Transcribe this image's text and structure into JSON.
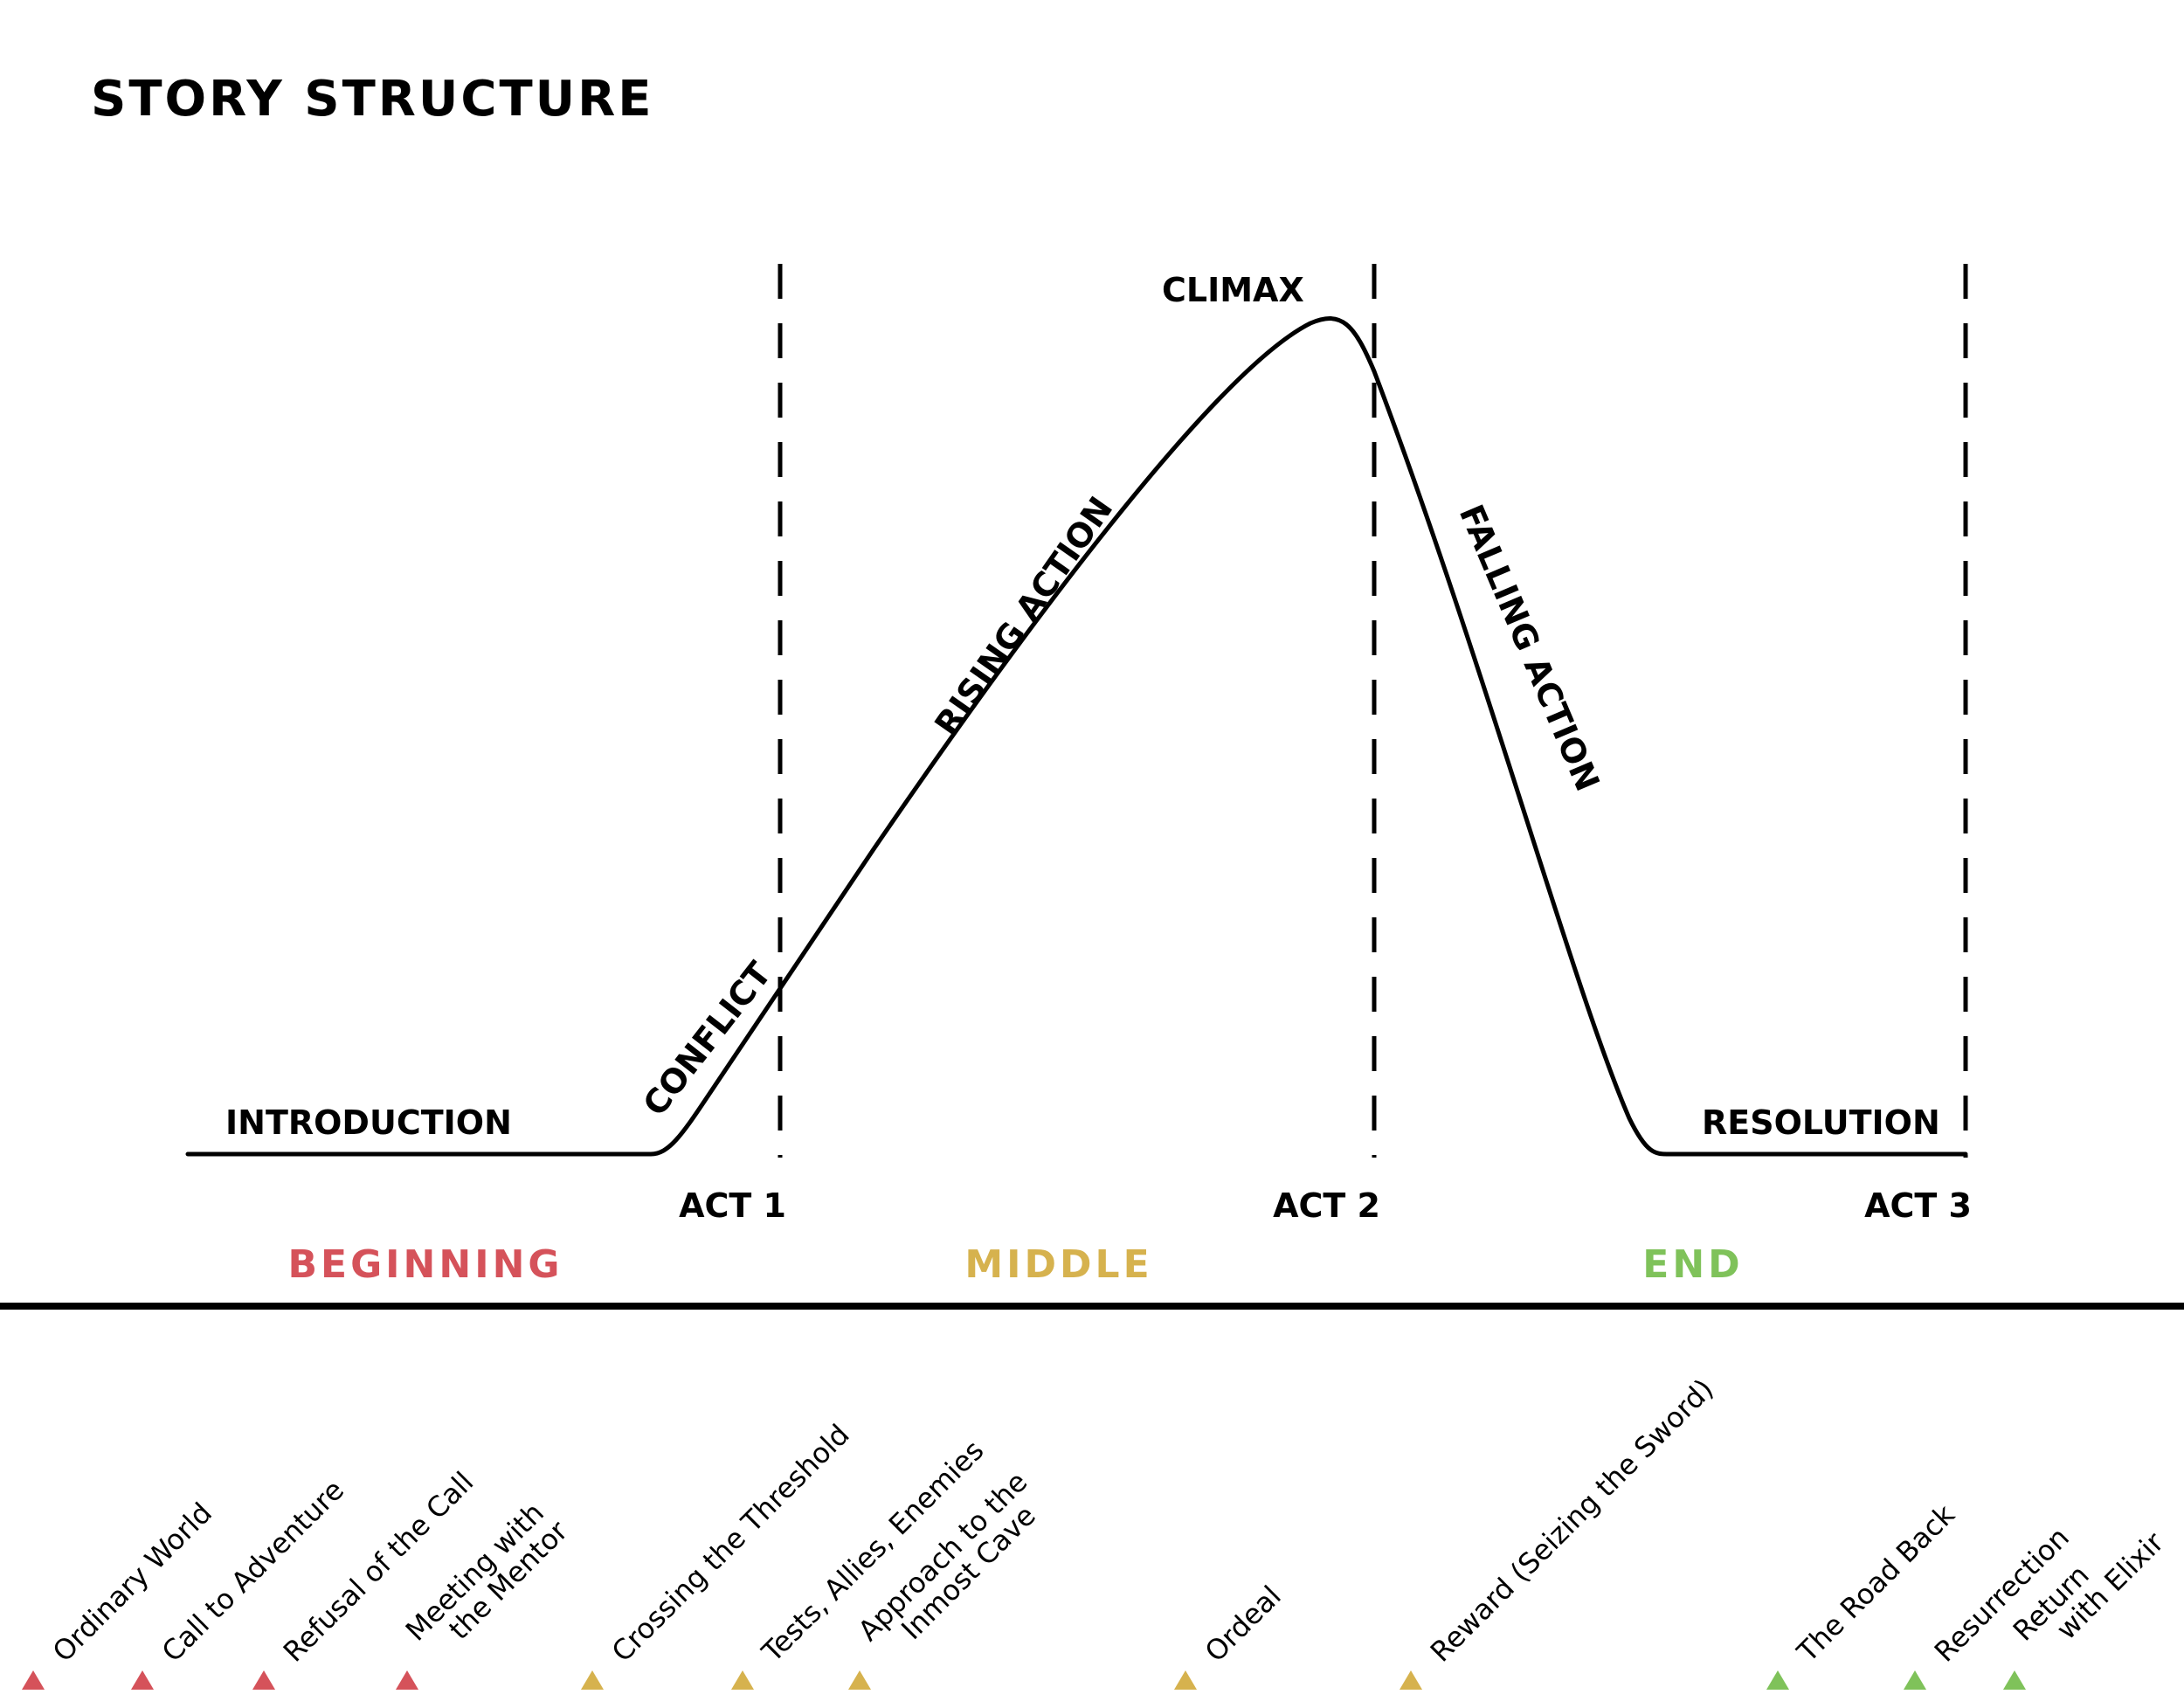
{
  "title": "STORY STRUCTURE",
  "plot_labels": {
    "introduction": "INTRODUCTION",
    "conflict": "CONFLICT",
    "rising_action": "RISING ACTION",
    "climax": "CLIMAX",
    "falling_action": "FALLING ACTION",
    "resolution": "RESOLUTION"
  },
  "acts": [
    "ACT 1",
    "ACT 2",
    "ACT 3"
  ],
  "sections": {
    "beginning": {
      "label": "BEGINNING",
      "color": "#d5525a"
    },
    "middle": {
      "label": "MIDDLE",
      "color": "#d6b24e"
    },
    "end": {
      "label": "END",
      "color": "#7fc25a"
    }
  },
  "stages": [
    {
      "lines": [
        "Ordinary World"
      ],
      "group": "beginning"
    },
    {
      "lines": [
        "Call to Adventure"
      ],
      "group": "beginning"
    },
    {
      "lines": [
        "Refusal of the Call"
      ],
      "group": "beginning"
    },
    {
      "lines": [
        "Meeting with",
        "the Mentor"
      ],
      "group": "beginning"
    },
    {
      "lines": [
        "Crossing the Threshold"
      ],
      "group": "middle"
    },
    {
      "lines": [
        "Tests, Allies, Enemies"
      ],
      "group": "middle"
    },
    {
      "lines": [
        "Approach to the",
        "Inmost Cave"
      ],
      "group": "middle"
    },
    {
      "lines": [
        "Ordeal"
      ],
      "group": "middle"
    },
    {
      "lines": [
        "Reward (Seizing the Sword)"
      ],
      "group": "middle"
    },
    {
      "lines": [
        "The Road Back"
      ],
      "group": "end"
    },
    {
      "lines": [
        "Resurrection"
      ],
      "group": "end"
    },
    {
      "lines": [
        "Return",
        "with Elixir"
      ],
      "group": "end"
    }
  ]
}
